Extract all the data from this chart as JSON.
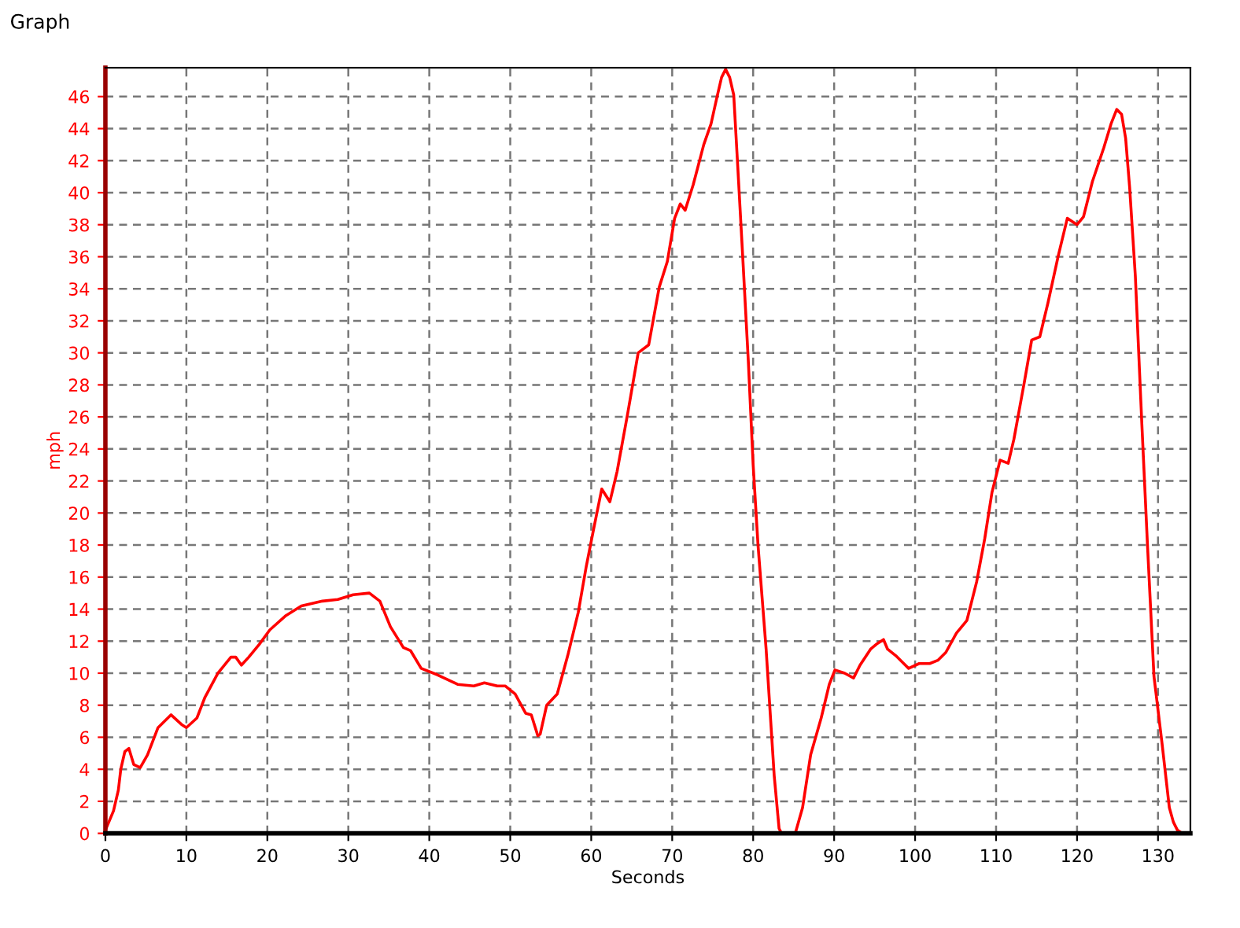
{
  "chart_data": {
    "type": "line",
    "title": "Graph",
    "xlabel": "Seconds",
    "ylabel": "mph",
    "xlim": [
      0,
      134
    ],
    "ylim": [
      0,
      47.8
    ],
    "xticks": [
      0,
      10,
      20,
      30,
      40,
      50,
      60,
      70,
      80,
      90,
      100,
      110,
      120,
      130
    ],
    "yticks": [
      0,
      2,
      4,
      6,
      8,
      10,
      12,
      14,
      16,
      18,
      20,
      22,
      24,
      26,
      28,
      30,
      32,
      34,
      36,
      38,
      40,
      42,
      44,
      46
    ],
    "grid": true,
    "marker": "none",
    "line_style": "solid",
    "series": [
      {
        "color": "#ff0000",
        "x": [
          0,
          1,
          1.6,
          1.9,
          2.4,
          2.9,
          3.5,
          4.3,
          5.2,
          6.5,
          8.1,
          9.4,
          10,
          11.3,
          12.3,
          13.9,
          15.5,
          16.1,
          16.8,
          17.7,
          19,
          20.3,
          22.3,
          24.2,
          26.8,
          28.7,
          30.6,
          32.6,
          33.9,
          35.2,
          36.8,
          37.7,
          39,
          41,
          43.5,
          45.5,
          46.8,
          48.4,
          49.4,
          50.6,
          51.9,
          52.6,
          53.4,
          53.7,
          54.5,
          55.8,
          57.1,
          58.4,
          59.4,
          60.3,
          61.3,
          62.3,
          63.2,
          64.5,
          65.8,
          67.1,
          68.4,
          69.4,
          70.3,
          71,
          71.6,
          72.6,
          73.9,
          74.8,
          75.5,
          76.1,
          76.6,
          77.1,
          77.6,
          78.1,
          78.7,
          79.4,
          80,
          80.6,
          81.6,
          82.6,
          83.2,
          83.5,
          85.2,
          86.1,
          87.1,
          88.4,
          89.4,
          90.1,
          91.3,
          92.4,
          93.2,
          94.5,
          95.2,
          96.1,
          96.6,
          97.6,
          98.6,
          99.2,
          100.5,
          101.8,
          102.8,
          103.8,
          105.1,
          106.4,
          107.6,
          108.6,
          109.5,
          110.5,
          111.5,
          112.2,
          113.5,
          114.4,
          115.4,
          116.4,
          117.7,
          118.8,
          120,
          120.8,
          121.9,
          123.3,
          124.2,
          124.9,
          125.5,
          126,
          126.5,
          127.2,
          128,
          128.7,
          129.5,
          130.5,
          131.4,
          131.9,
          132.4,
          133,
          133.9
        ],
        "values": [
          0.2,
          1.4,
          2.7,
          4,
          5.1,
          5.3,
          4.3,
          4.1,
          4.9,
          6.6,
          7.4,
          6.8,
          6.6,
          7.2,
          8.5,
          10,
          11,
          11,
          10.5,
          11,
          11.8,
          12.7,
          13.6,
          14.2,
          14.5,
          14.6,
          14.9,
          15,
          14.5,
          12.9,
          11.6,
          11.4,
          10.3,
          9.9,
          9.3,
          9.2,
          9.4,
          9.2,
          9.2,
          8.7,
          7.5,
          7.4,
          6.1,
          6.2,
          8,
          8.7,
          11.1,
          13.8,
          16.7,
          19,
          21.5,
          20.7,
          22.6,
          26.2,
          30,
          30.5,
          34.1,
          35.7,
          38.4,
          39.3,
          38.9,
          40.5,
          43,
          44.3,
          45.9,
          47.2,
          47.7,
          47.2,
          46.1,
          41.6,
          36.1,
          29.5,
          23,
          18,
          11.5,
          3.6,
          0.3,
          0,
          0,
          1.6,
          4.9,
          7.2,
          9.3,
          10.2,
          10,
          9.7,
          10.5,
          11.5,
          11.8,
          12.1,
          11.5,
          11.1,
          10.6,
          10.3,
          10.6,
          10.6,
          10.8,
          11.3,
          12.5,
          13.3,
          15.7,
          18.4,
          21.3,
          23.3,
          23.1,
          24.6,
          28.2,
          30.8,
          31,
          33.1,
          36.1,
          38.4,
          38,
          38.5,
          40.7,
          42.8,
          44.3,
          45.2,
          44.9,
          43.4,
          40.3,
          34.8,
          25.6,
          18,
          9.8,
          5.6,
          1.6,
          0.7,
          0.2,
          0,
          0
        ]
      }
    ]
  }
}
